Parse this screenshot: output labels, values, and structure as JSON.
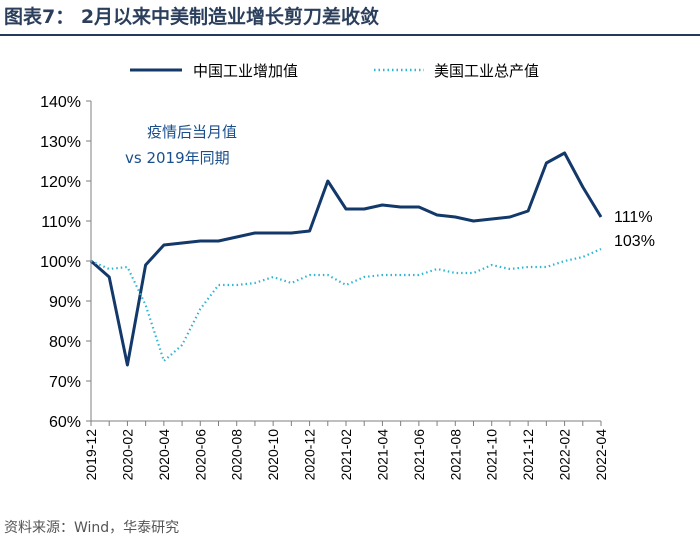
{
  "figure": {
    "title": "图表7：  2月以来中美制造业增长剪刀差收敛",
    "source": "资料来源：Wind，华泰研究"
  },
  "colors": {
    "china": "#13386a",
    "us": "#2eb6d1",
    "axis": "#7f7f7f",
    "title_rule": "#23395d"
  },
  "chart_data": {
    "type": "line",
    "title": "2月以来中美制造业增长剪刀差收敛",
    "xlabel": "",
    "ylabel": "",
    "ylim": [
      60,
      140
    ],
    "yticks": [
      60,
      70,
      80,
      90,
      100,
      110,
      120,
      130,
      140
    ],
    "ytick_labels": [
      "60%",
      "70%",
      "80%",
      "90%",
      "100%",
      "110%",
      "120%",
      "130%",
      "140%"
    ],
    "x": [
      "2019-12",
      "2020-01",
      "2020-02",
      "2020-03",
      "2020-04",
      "2020-05",
      "2020-06",
      "2020-07",
      "2020-08",
      "2020-09",
      "2020-10",
      "2020-11",
      "2020-12",
      "2021-01",
      "2021-02",
      "2021-03",
      "2021-04",
      "2021-05",
      "2021-06",
      "2021-07",
      "2021-08",
      "2021-09",
      "2021-10",
      "2021-11",
      "2021-12",
      "2022-01",
      "2022-02",
      "2022-03",
      "2022-04"
    ],
    "xtick_labels": [
      "2019-12",
      "2020-02",
      "2020-04",
      "2020-06",
      "2020-08",
      "2020-10",
      "2020-12",
      "2021-02",
      "2021-04",
      "2021-06",
      "2021-08",
      "2021-10",
      "2021-12",
      "2022-02",
      "2022-04"
    ],
    "series": [
      {
        "name": "中国工业增加值",
        "style": "solid",
        "values": [
          100,
          96,
          74,
          99,
          104,
          104.5,
          105,
          105,
          106,
          107,
          107,
          107,
          107.5,
          120,
          113,
          113,
          114,
          113.5,
          113.5,
          111.5,
          111,
          110,
          110.5,
          111,
          112.5,
          124.5,
          127,
          118.5,
          111
        ],
        "end_label": "111%"
      },
      {
        "name": "美国工业总产值",
        "style": "dotted",
        "values": [
          100,
          98,
          98.5,
          89,
          75,
          79,
          88,
          94,
          94,
          94.5,
          96,
          94.5,
          96.5,
          96.5,
          94,
          96,
          96.5,
          96.5,
          96.5,
          98,
          97,
          97,
          99,
          98,
          98.5,
          98.5,
          100,
          101,
          103
        ],
        "end_label": "103%"
      }
    ],
    "annotation": [
      "疫情后当月值",
      "vs  2019年同期"
    ],
    "legend": "top"
  }
}
